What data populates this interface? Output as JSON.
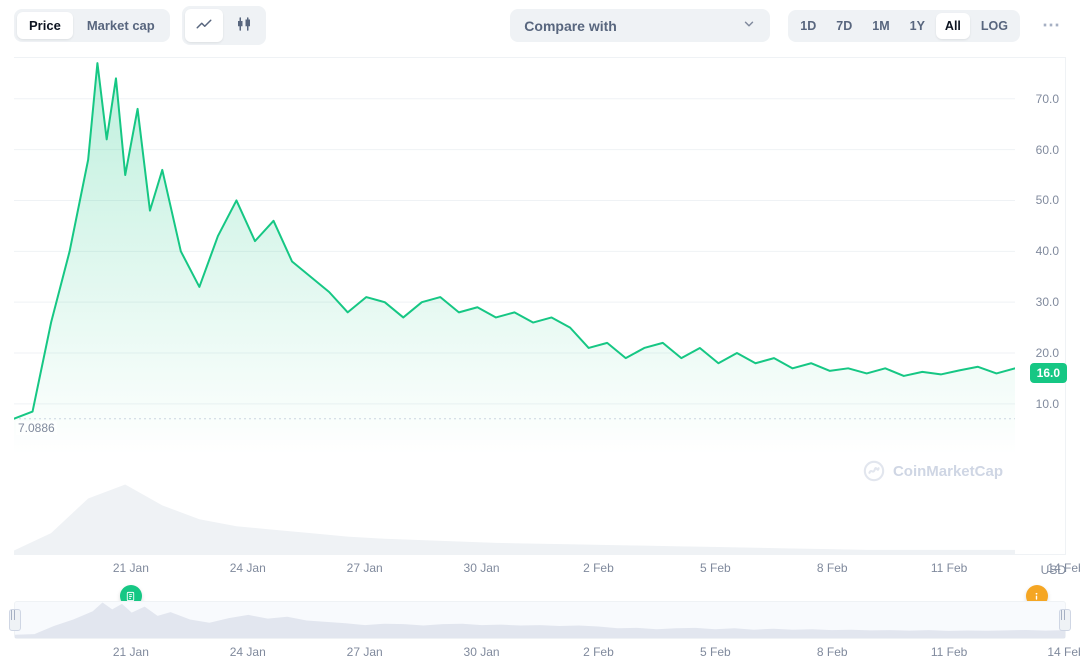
{
  "toolbar": {
    "tabs": [
      {
        "key": "price",
        "label": "Price",
        "active": true
      },
      {
        "key": "mcap",
        "label": "Market cap",
        "active": false
      }
    ],
    "chart_type_icons": [
      {
        "name": "line-icon",
        "active": true
      },
      {
        "name": "candlestick-icon",
        "active": false
      }
    ],
    "compare_label": "Compare with",
    "ranges": [
      {
        "key": "1d",
        "label": "1D",
        "active": false
      },
      {
        "key": "7d",
        "label": "7D",
        "active": false
      },
      {
        "key": "1m",
        "label": "1M",
        "active": false
      },
      {
        "key": "1y",
        "label": "1Y",
        "active": false
      },
      {
        "key": "all",
        "label": "All",
        "active": true
      },
      {
        "key": "log",
        "label": "LOG",
        "active": false
      }
    ]
  },
  "chart": {
    "type": "area-line",
    "line_color": "#16c784",
    "area_top_color": "rgba(22,199,132,0.28)",
    "area_bottom_color": "rgba(22,199,132,0.0)",
    "line_width": 2,
    "grid_color": "#eff2f5",
    "background_color": "#ffffff",
    "font_color": "#808a9d",
    "ylim": [
      0,
      78
    ],
    "y_ticks": [
      10.0,
      20.0,
      30.0,
      40.0,
      50.0,
      60.0,
      70.0
    ],
    "start_value_label": "7.0886",
    "current_value": 16.0,
    "current_value_label": "16.0",
    "currency_label": "USD",
    "x_domain": [
      "2024-01-18",
      "2024-02-14"
    ],
    "x_ticks": [
      {
        "t": "2024-01-21",
        "label": "21 Jan"
      },
      {
        "t": "2024-01-24",
        "label": "24 Jan"
      },
      {
        "t": "2024-01-27",
        "label": "27 Jan"
      },
      {
        "t": "2024-01-30",
        "label": "30 Jan"
      },
      {
        "t": "2024-02-02",
        "label": "2 Feb"
      },
      {
        "t": "2024-02-05",
        "label": "5 Feb"
      },
      {
        "t": "2024-02-08",
        "label": "8 Feb"
      },
      {
        "t": "2024-02-11",
        "label": "11 Feb"
      },
      {
        "t": "2024-02-14",
        "label": "14 Feb"
      }
    ],
    "series": [
      {
        "t": "2024-01-18",
        "v": 7.09
      },
      {
        "t": "2024-01-18T12",
        "v": 8.5
      },
      {
        "t": "2024-01-19",
        "v": 26
      },
      {
        "t": "2024-01-19T12",
        "v": 40
      },
      {
        "t": "2024-01-20",
        "v": 58
      },
      {
        "t": "2024-01-20T06",
        "v": 77
      },
      {
        "t": "2024-01-20T12",
        "v": 62
      },
      {
        "t": "2024-01-20T18",
        "v": 74
      },
      {
        "t": "2024-01-21",
        "v": 55
      },
      {
        "t": "2024-01-21T08",
        "v": 68
      },
      {
        "t": "2024-01-21T16",
        "v": 48
      },
      {
        "t": "2024-01-22",
        "v": 56
      },
      {
        "t": "2024-01-22T12",
        "v": 40
      },
      {
        "t": "2024-01-23",
        "v": 33
      },
      {
        "t": "2024-01-23T12",
        "v": 43
      },
      {
        "t": "2024-01-24",
        "v": 50
      },
      {
        "t": "2024-01-24T12",
        "v": 42
      },
      {
        "t": "2024-01-25",
        "v": 46
      },
      {
        "t": "2024-01-25T12",
        "v": 38
      },
      {
        "t": "2024-01-26",
        "v": 35
      },
      {
        "t": "2024-01-26T12",
        "v": 32
      },
      {
        "t": "2024-01-27",
        "v": 28
      },
      {
        "t": "2024-01-27T12",
        "v": 31
      },
      {
        "t": "2024-01-28",
        "v": 30
      },
      {
        "t": "2024-01-28T12",
        "v": 27
      },
      {
        "t": "2024-01-29",
        "v": 30
      },
      {
        "t": "2024-01-29T12",
        "v": 31
      },
      {
        "t": "2024-01-30",
        "v": 28
      },
      {
        "t": "2024-01-30T12",
        "v": 29
      },
      {
        "t": "2024-01-31",
        "v": 27
      },
      {
        "t": "2024-01-31T12",
        "v": 28
      },
      {
        "t": "2024-02-01",
        "v": 26
      },
      {
        "t": "2024-02-01T12",
        "v": 27
      },
      {
        "t": "2024-02-02",
        "v": 25
      },
      {
        "t": "2024-02-02T12",
        "v": 21
      },
      {
        "t": "2024-02-03",
        "v": 22
      },
      {
        "t": "2024-02-03T12",
        "v": 19
      },
      {
        "t": "2024-02-04",
        "v": 21
      },
      {
        "t": "2024-02-04T12",
        "v": 22
      },
      {
        "t": "2024-02-05",
        "v": 19
      },
      {
        "t": "2024-02-05T12",
        "v": 21
      },
      {
        "t": "2024-02-06",
        "v": 18
      },
      {
        "t": "2024-02-06T12",
        "v": 20
      },
      {
        "t": "2024-02-07",
        "v": 18
      },
      {
        "t": "2024-02-07T12",
        "v": 19
      },
      {
        "t": "2024-02-08",
        "v": 17
      },
      {
        "t": "2024-02-08T12",
        "v": 18
      },
      {
        "t": "2024-02-09",
        "v": 16.5
      },
      {
        "t": "2024-02-09T12",
        "v": 17
      },
      {
        "t": "2024-02-10",
        "v": 16
      },
      {
        "t": "2024-02-10T12",
        "v": 17
      },
      {
        "t": "2024-02-11",
        "v": 15.5
      },
      {
        "t": "2024-02-11T12",
        "v": 16.3
      },
      {
        "t": "2024-02-12",
        "v": 15.8
      },
      {
        "t": "2024-02-12T12",
        "v": 16.6
      },
      {
        "t": "2024-02-13",
        "v": 17.3
      },
      {
        "t": "2024-02-13T12",
        "v": 16
      },
      {
        "t": "2024-02-14",
        "v": 17
      },
      {
        "t": "2024-02-14T12",
        "v": 16.0
      }
    ],
    "volume_series": [
      {
        "t": "2024-01-18",
        "v": 0.5
      },
      {
        "t": "2024-01-19",
        "v": 3
      },
      {
        "t": "2024-01-20",
        "v": 8
      },
      {
        "t": "2024-01-21",
        "v": 10
      },
      {
        "t": "2024-01-22",
        "v": 7
      },
      {
        "t": "2024-01-23",
        "v": 5
      },
      {
        "t": "2024-01-24",
        "v": 4
      },
      {
        "t": "2024-01-25",
        "v": 3.5
      },
      {
        "t": "2024-01-26",
        "v": 3
      },
      {
        "t": "2024-01-27",
        "v": 2.5
      },
      {
        "t": "2024-01-28",
        "v": 2.2
      },
      {
        "t": "2024-01-29",
        "v": 2
      },
      {
        "t": "2024-01-30",
        "v": 1.8
      },
      {
        "t": "2024-01-31",
        "v": 1.6
      },
      {
        "t": "2024-02-01",
        "v": 1.5
      },
      {
        "t": "2024-02-02",
        "v": 1.4
      },
      {
        "t": "2024-02-03",
        "v": 1.3
      },
      {
        "t": "2024-02-04",
        "v": 1.2
      },
      {
        "t": "2024-02-05",
        "v": 1.1
      },
      {
        "t": "2024-02-06",
        "v": 1.0
      },
      {
        "t": "2024-02-07",
        "v": 0.9
      },
      {
        "t": "2024-02-08",
        "v": 0.8
      },
      {
        "t": "2024-02-09",
        "v": 0.7
      },
      {
        "t": "2024-02-10",
        "v": 0.6
      },
      {
        "t": "2024-02-11",
        "v": 0.6
      },
      {
        "t": "2024-02-12",
        "v": 0.6
      },
      {
        "t": "2024-02-13",
        "v": 0.6
      },
      {
        "t": "2024-02-14",
        "v": 0.6
      }
    ],
    "volume_color": "#eff2f5",
    "volume_height_pct": 0.14,
    "price_plot_height_pct": 0.8,
    "markers": [
      {
        "t": "2024-01-21",
        "type": "news",
        "color": "#16c784"
      },
      {
        "t": "2024-02-13T06",
        "type": "info",
        "color": "#f5a623"
      }
    ],
    "watermark_text": "CoinMarketCap"
  },
  "brush": {
    "series_ref": "chart.series",
    "area_color": "#cfd6e4",
    "range": [
      "2024-01-18",
      "2024-02-14"
    ]
  }
}
